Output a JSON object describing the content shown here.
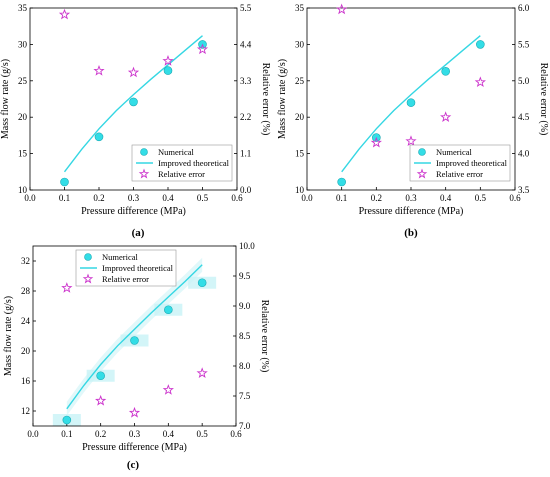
{
  "chart_data": [
    {
      "type": "line",
      "panel_label": "(a)",
      "xlabel": "Pressure difference (MPa)",
      "ylabel": "Mass flow rate (g/s)",
      "y2label": "Relative error (%)",
      "xlim": [
        0.0,
        0.6
      ],
      "ylim": [
        10,
        35
      ],
      "y2lim": [
        0.0,
        5.5
      ],
      "xticks": [
        "0.0",
        "0.1",
        "0.2",
        "0.3",
        "0.4",
        "0.5",
        "0.6"
      ],
      "yticks": [
        "10",
        "15",
        "20",
        "25",
        "30",
        "35"
      ],
      "y2ticks": [
        "0.0",
        "1.1",
        "2.2",
        "3.3",
        "4.4",
        "5.5"
      ],
      "series": [
        {
          "name": "Numerical",
          "kind": "scatter",
          "axis": "left",
          "x": [
            0.1,
            0.2,
            0.3,
            0.4,
            0.5
          ],
          "y": [
            11.1,
            17.3,
            22.1,
            26.4,
            30.0
          ]
        },
        {
          "name": "Improved theoretical",
          "kind": "line",
          "axis": "left",
          "x": [
            0.1,
            0.15,
            0.2,
            0.25,
            0.3,
            0.35,
            0.4,
            0.45,
            0.5
          ],
          "y": [
            12.5,
            15.6,
            18.4,
            20.9,
            23.1,
            25.2,
            27.2,
            29.2,
            31.2
          ]
        },
        {
          "name": "Relative error",
          "kind": "star",
          "axis": "right",
          "x": [
            0.1,
            0.2,
            0.3,
            0.4,
            0.5
          ],
          "y": [
            5.3,
            3.6,
            3.55,
            3.9,
            4.25
          ]
        }
      ],
      "legend_position": "lower-right"
    },
    {
      "type": "line",
      "panel_label": "(b)",
      "xlabel": "Pressure difference (MPa)",
      "ylabel": "Mass flow rate (g/s)",
      "y2label": "Relative error (%)",
      "xlim": [
        0.0,
        0.6
      ],
      "ylim": [
        10,
        35
      ],
      "y2lim": [
        3.5,
        6.0
      ],
      "xticks": [
        "0.0",
        "0.1",
        "0.2",
        "0.3",
        "0.4",
        "0.5",
        "0.6"
      ],
      "yticks": [
        "10",
        "15",
        "20",
        "25",
        "30",
        "35"
      ],
      "y2ticks": [
        "3.5",
        "4.0",
        "4.5",
        "5.0",
        "5.5",
        "6.0"
      ],
      "series": [
        {
          "name": "Numerical",
          "kind": "scatter",
          "axis": "left",
          "x": [
            0.1,
            0.2,
            0.3,
            0.4,
            0.5
          ],
          "y": [
            11.1,
            17.2,
            22.0,
            26.3,
            30.0
          ]
        },
        {
          "name": "Improved theoretical",
          "kind": "line",
          "axis": "left",
          "x": [
            0.1,
            0.15,
            0.2,
            0.25,
            0.3,
            0.35,
            0.4,
            0.45,
            0.5
          ],
          "y": [
            12.5,
            15.6,
            18.4,
            20.9,
            23.1,
            25.2,
            27.2,
            29.2,
            31.2
          ]
        },
        {
          "name": "Relative error",
          "kind": "star",
          "axis": "right",
          "x": [
            0.1,
            0.2,
            0.3,
            0.4,
            0.5
          ],
          "y": [
            5.98,
            4.15,
            4.17,
            4.5,
            4.98
          ]
        }
      ],
      "legend_position": "lower-right"
    },
    {
      "type": "line",
      "panel_label": "(c)",
      "xlabel": "Pressure difference (MPa)",
      "ylabel": "Mass flow rate (g/s)",
      "y2label": "Relative error (%)",
      "xlim": [
        0.0,
        0.6
      ],
      "ylim": [
        10,
        34
      ],
      "y2lim": [
        7.0,
        10.0
      ],
      "xticks": [
        "0.0",
        "0.1",
        "0.2",
        "0.3",
        "0.4",
        "0.5",
        "0.6"
      ],
      "yticks": [
        "12",
        "16",
        "20",
        "24",
        "28",
        "32"
      ],
      "y2ticks": [
        "7.0",
        "7.5",
        "8.0",
        "8.5",
        "9.0",
        "9.5",
        "10.0"
      ],
      "series": [
        {
          "name": "Numerical",
          "kind": "scatter",
          "axis": "left",
          "x": [
            0.1,
            0.2,
            0.3,
            0.4,
            0.5
          ],
          "y": [
            10.8,
            16.7,
            21.4,
            25.5,
            29.1
          ]
        },
        {
          "name": "Improved theoretical",
          "kind": "line",
          "axis": "left",
          "x": [
            0.1,
            0.15,
            0.2,
            0.25,
            0.3,
            0.35,
            0.4,
            0.45,
            0.5
          ],
          "y": [
            12.3,
            15.4,
            18.2,
            20.7,
            22.9,
            25.1,
            27.2,
            29.3,
            31.5
          ]
        },
        {
          "name": "Relative error",
          "kind": "star",
          "axis": "right",
          "x": [
            0.1,
            0.2,
            0.3,
            0.4,
            0.5
          ],
          "y": [
            9.3,
            7.42,
            7.22,
            7.6,
            7.88
          ]
        }
      ],
      "legend_position": "top-left"
    }
  ],
  "colors": {
    "numerical": "#33dde6",
    "theoretical": "#35d7e3",
    "relative_error": "#cc33cc",
    "band": "#c8f3f6"
  }
}
